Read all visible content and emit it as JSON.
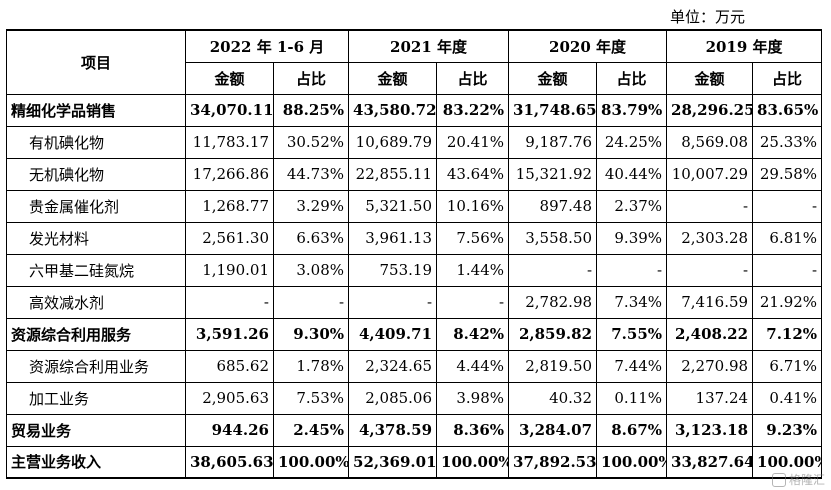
{
  "unit_label": "单位：万元",
  "header": {
    "item": "项目",
    "periods": [
      "2022 年 1-6 月",
      "2021 年度",
      "2020 年度",
      "2019 年度"
    ],
    "amount": "金额",
    "ratio": "占比"
  },
  "rows": [
    {
      "name": "精细化学品销售",
      "bold": true,
      "indent": false,
      "values": [
        "34,070.11",
        "88.25%",
        "43,580.72",
        "83.22%",
        "31,748.65",
        "83.79%",
        "28,296.25",
        "83.65%"
      ]
    },
    {
      "name": "有机碘化物",
      "bold": false,
      "indent": true,
      "values": [
        "11,783.17",
        "30.52%",
        "10,689.79",
        "20.41%",
        "9,187.76",
        "24.25%",
        "8,569.08",
        "25.33%"
      ]
    },
    {
      "name": "无机碘化物",
      "bold": false,
      "indent": true,
      "values": [
        "17,266.86",
        "44.73%",
        "22,855.11",
        "43.64%",
        "15,321.92",
        "40.44%",
        "10,007.29",
        "29.58%"
      ]
    },
    {
      "name": "贵金属催化剂",
      "bold": false,
      "indent": true,
      "values": [
        "1,268.77",
        "3.29%",
        "5,321.50",
        "10.16%",
        "897.48",
        "2.37%",
        "-",
        "-"
      ]
    },
    {
      "name": "发光材料",
      "bold": false,
      "indent": true,
      "values": [
        "2,561.30",
        "6.63%",
        "3,961.13",
        "7.56%",
        "3,558.50",
        "9.39%",
        "2,303.28",
        "6.81%"
      ]
    },
    {
      "name": "六甲基二硅氮烷",
      "bold": false,
      "indent": true,
      "values": [
        "1,190.01",
        "3.08%",
        "753.19",
        "1.44%",
        "-",
        "-",
        "-",
        "-"
      ]
    },
    {
      "name": "高效减水剂",
      "bold": false,
      "indent": true,
      "values": [
        "-",
        "-",
        "-",
        "-",
        "2,782.98",
        "7.34%",
        "7,416.59",
        "21.92%"
      ]
    },
    {
      "name": "资源综合利用服务",
      "bold": true,
      "indent": false,
      "values": [
        "3,591.26",
        "9.30%",
        "4,409.71",
        "8.42%",
        "2,859.82",
        "7.55%",
        "2,408.22",
        "7.12%"
      ]
    },
    {
      "name": "资源综合利用业务",
      "bold": false,
      "indent": true,
      "values": [
        "685.62",
        "1.78%",
        "2,324.65",
        "4.44%",
        "2,819.50",
        "7.44%",
        "2,270.98",
        "6.71%"
      ]
    },
    {
      "name": "加工业务",
      "bold": false,
      "indent": true,
      "values": [
        "2,905.63",
        "7.53%",
        "2,085.06",
        "3.98%",
        "40.32",
        "0.11%",
        "137.24",
        "0.41%"
      ]
    },
    {
      "name": "贸易业务",
      "bold": true,
      "indent": false,
      "values": [
        "944.26",
        "2.45%",
        "4,378.59",
        "8.36%",
        "3,284.07",
        "8.67%",
        "3,123.18",
        "9.23%"
      ]
    },
    {
      "name": "主营业务收入",
      "bold": true,
      "indent": false,
      "values": [
        "38,605.63",
        "100.00%",
        "52,369.01",
        "100.00%",
        "37,892.53",
        "100.00%",
        "33,827.64",
        "100.00%"
      ]
    }
  ],
  "watermark": {
    "text": "格隆汇",
    "icon": "brand-logo-icon"
  }
}
